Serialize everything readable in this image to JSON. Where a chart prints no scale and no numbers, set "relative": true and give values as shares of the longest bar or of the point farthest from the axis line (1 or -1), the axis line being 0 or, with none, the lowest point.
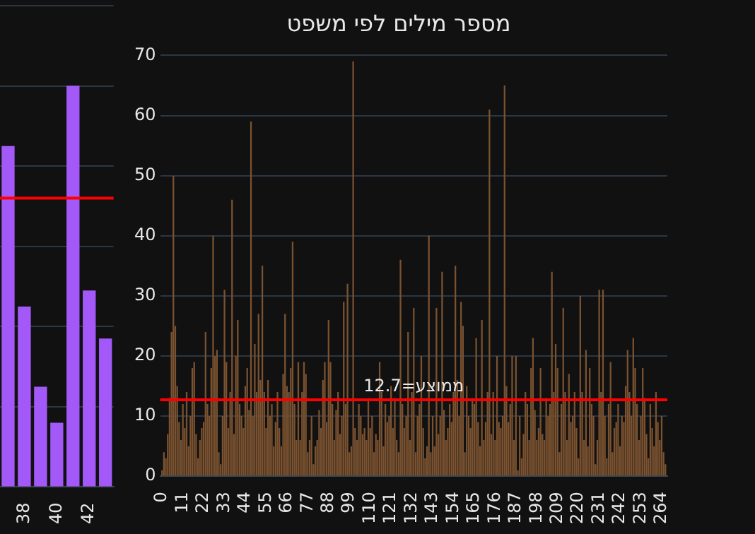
{
  "chart_data": [
    {
      "type": "bar",
      "categories": [
        null,
        "38",
        null,
        "40",
        null,
        "42",
        null
      ],
      "values": [
        0.85,
        0.45,
        0.25,
        0.16,
        1,
        0.49,
        0.37
      ],
      "color": "#a259f7",
      "relative": true,
      "grid": "y",
      "tick_labels": "x",
      "ref_lines": [
        {
          "axis": "y",
          "value": 0.72,
          "color": "#ff0000"
        }
      ]
    },
    {
      "type": "bar",
      "title": "מספר מילים לפי משפט",
      "color": "#7a5230",
      "grid": "y",
      "x": [
        0,
        1,
        2,
        3,
        4,
        5,
        6,
        7,
        8,
        9,
        10,
        11,
        12,
        13,
        14,
        15,
        16,
        17,
        18,
        19,
        20,
        21,
        22,
        23,
        24,
        25,
        26,
        27,
        28,
        29,
        30,
        31,
        32,
        33,
        34,
        35,
        36,
        37,
        38,
        39,
        40,
        41,
        42,
        43,
        44,
        45,
        46,
        47,
        48,
        49,
        50,
        51,
        52,
        53,
        54,
        55,
        56,
        57,
        58,
        59,
        60,
        61,
        62,
        63,
        64,
        65,
        66,
        67,
        68,
        69,
        70,
        71,
        72,
        73,
        74,
        75,
        76,
        77,
        78,
        79,
        80,
        81,
        82,
        83,
        84,
        85,
        86,
        87,
        88,
        89,
        90,
        91,
        92,
        93,
        94,
        95,
        96,
        97,
        98,
        99,
        100,
        101,
        102,
        103,
        104,
        105,
        106,
        107,
        108,
        109,
        110,
        111,
        112,
        113,
        114,
        115,
        116,
        117,
        118,
        119,
        120,
        121,
        122,
        123,
        124,
        125,
        126,
        127,
        128,
        129,
        130,
        131,
        132,
        133,
        134,
        135,
        136,
        137,
        138,
        139,
        140,
        141,
        142,
        143,
        144,
        145,
        146,
        147,
        148,
        149,
        150,
        151,
        152,
        153,
        154,
        155,
        156,
        157,
        158,
        159,
        160,
        161,
        162,
        163,
        164,
        165,
        166,
        167,
        168,
        169,
        170,
        171,
        172,
        173,
        174,
        175,
        176,
        177,
        178,
        179,
        180,
        181,
        182,
        183,
        184,
        185,
        186,
        187,
        188,
        189,
        190,
        191,
        192,
        193,
        194,
        195,
        196,
        197,
        198,
        199,
        200,
        201,
        202,
        203,
        204,
        205,
        206,
        207,
        208,
        209,
        210,
        211,
        212,
        213,
        214,
        215,
        216,
        217,
        218,
        219,
        220,
        221,
        222,
        223,
        224,
        225,
        226,
        227,
        228,
        229,
        230,
        231,
        232,
        233,
        234,
        235,
        236,
        237,
        238,
        239,
        240,
        241,
        242,
        243,
        244,
        245,
        246,
        247,
        248,
        249,
        250,
        251,
        252,
        253,
        254,
        255,
        256,
        257,
        258,
        259,
        260,
        261,
        262,
        263,
        264,
        265,
        266
      ],
      "values": [
        1,
        4,
        3,
        7,
        13,
        24,
        50,
        25,
        15,
        9,
        6,
        12,
        8,
        14,
        5,
        10,
        18,
        19,
        7,
        3,
        6,
        8,
        9,
        24,
        12,
        10,
        18,
        40,
        20,
        21,
        4,
        2,
        10,
        31,
        19,
        8,
        14,
        46,
        7,
        20,
        26,
        12,
        10,
        8,
        15,
        18,
        11,
        59,
        10,
        22,
        14,
        27,
        16,
        35,
        14,
        8,
        16,
        10,
        12,
        5,
        9,
        14,
        8,
        5,
        17,
        27,
        15,
        14,
        18,
        39,
        12,
        6,
        19,
        6,
        14,
        19,
        17,
        4,
        6,
        10,
        2,
        5,
        6,
        11,
        8,
        16,
        19,
        9,
        26,
        19,
        12,
        6,
        11,
        14,
        7,
        10,
        29,
        12,
        32,
        4,
        5,
        69,
        8,
        6,
        12,
        10,
        7,
        8,
        6,
        13,
        8,
        10,
        4,
        7,
        6,
        19,
        14,
        5,
        12,
        9,
        10,
        15,
        8,
        13,
        6,
        4,
        36,
        12,
        8,
        10,
        24,
        6,
        14,
        28,
        4,
        10,
        12,
        20,
        8,
        3,
        5,
        40,
        4,
        10,
        5,
        28,
        7,
        10,
        34,
        11,
        6,
        8,
        12,
        9,
        14,
        35,
        16,
        10,
        29,
        25,
        4,
        15,
        10,
        8,
        13,
        12,
        23,
        9,
        5,
        26,
        6,
        9,
        14,
        61,
        7,
        14,
        6,
        20,
        9,
        8,
        10,
        65,
        15,
        9,
        12,
        20,
        6,
        20,
        1,
        10,
        3,
        7,
        14,
        12,
        6,
        18,
        23,
        11,
        6,
        8,
        18,
        7,
        6,
        13,
        10,
        12,
        34,
        14,
        22,
        18,
        4,
        12,
        28,
        14,
        6,
        17,
        9,
        10,
        14,
        8,
        3,
        30,
        14,
        6,
        21,
        5,
        18,
        12,
        10,
        2,
        6,
        31,
        14,
        31,
        10,
        3,
        12,
        19,
        4,
        8,
        9,
        12,
        5,
        10,
        9,
        15,
        21,
        14,
        10,
        23,
        18,
        12,
        6,
        10,
        18,
        13,
        7,
        3,
        12,
        8,
        5,
        14,
        9,
        6,
        10,
        4,
        2
      ],
      "xlim": [
        -1,
        267
      ],
      "xticks": [
        0,
        11,
        22,
        33,
        44,
        55,
        66,
        77,
        88,
        99,
        110,
        121,
        132,
        143,
        154,
        165,
        176,
        187,
        198,
        209,
        220,
        231,
        242,
        253,
        264
      ],
      "ylim": [
        0,
        70
      ],
      "yticks": [
        0,
        10,
        20,
        30,
        40,
        50,
        60,
        70
      ],
      "ref_lines": [
        {
          "axis": "y",
          "value": 12.7,
          "label": "ממוצע=12.7",
          "color": "#ff0000"
        }
      ]
    }
  ]
}
